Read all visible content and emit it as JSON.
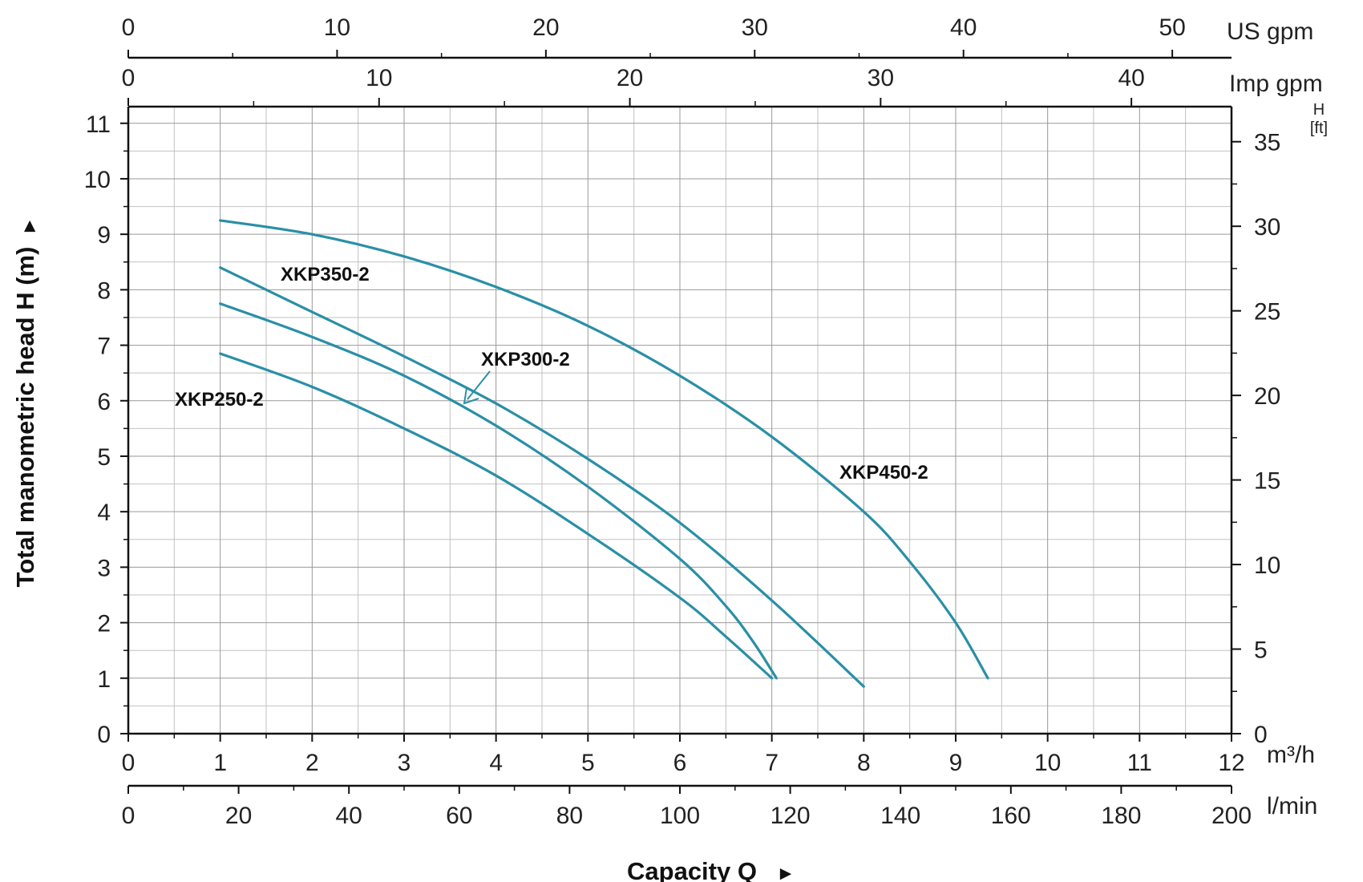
{
  "chart_data": {
    "type": "line",
    "title": "",
    "xlabel": "Capacity Q",
    "ylabel": "Total manometric head H (m)",
    "x_arrow": "►",
    "y_arrow": "►",
    "grid": true,
    "xlim": [
      0,
      12
    ],
    "ylim": [
      0,
      11.3
    ],
    "x_ticks": [
      "0",
      "1",
      "2",
      "3",
      "4",
      "5",
      "6",
      "7",
      "8",
      "9",
      "10",
      "11",
      "12"
    ],
    "x_unit": "m³/h",
    "y_ticks": [
      "0",
      "1",
      "2",
      "3",
      "4",
      "5",
      "6",
      "7",
      "8",
      "9",
      "10",
      "11"
    ],
    "secondary_axes": {
      "lmin": {
        "unit": "l/min",
        "max": 200,
        "ticks": [
          "0",
          "20",
          "40",
          "60",
          "80",
          "100",
          "120",
          "140",
          "160",
          "180",
          "200"
        ]
      },
      "imp_gpm": {
        "unit": "Imp gpm",
        "factor": 3.666,
        "ticks": [
          "0",
          "10",
          "20",
          "30",
          "40"
        ]
      },
      "us_gpm": {
        "unit": "US gpm",
        "factor": 4.403,
        "ticks": [
          "0",
          "10",
          "20",
          "30",
          "40",
          "50"
        ]
      },
      "ft": {
        "unit_top": "H",
        "unit_bottom": "[ft]",
        "factor": 3.2808,
        "ticks": [
          "0",
          "5",
          "10",
          "15",
          "20",
          "25",
          "30",
          "35"
        ]
      }
    },
    "series": [
      {
        "name": "XKP250-2",
        "label": "XKP250-2",
        "color": "#2a8fa6",
        "x": [
          1.0,
          2.0,
          3.0,
          4.0,
          5.0,
          6.0,
          6.5,
          7.0
        ],
        "y": [
          6.85,
          6.25,
          5.5,
          4.65,
          3.6,
          2.45,
          1.75,
          1.0
        ]
      },
      {
        "name": "XKP300-2",
        "label": "XKP300-2",
        "color": "#2a8fa6",
        "x": [
          1.0,
          2.0,
          3.0,
          4.0,
          5.0,
          6.0,
          6.5,
          6.8,
          7.05
        ],
        "y": [
          7.75,
          7.15,
          6.45,
          5.55,
          4.45,
          3.15,
          2.3,
          1.65,
          1.0
        ]
      },
      {
        "name": "XKP350-2",
        "label": "XKP350-2",
        "color": "#2a8fa6",
        "x": [
          1.0,
          2.0,
          3.0,
          4.0,
          5.0,
          6.0,
          7.0,
          8.0
        ],
        "y": [
          8.4,
          7.6,
          6.8,
          5.95,
          4.95,
          3.8,
          2.4,
          0.85
        ]
      },
      {
        "name": "XKP450-2",
        "label": "XKP450-2",
        "color": "#2a8fa6",
        "x": [
          1.0,
          2.0,
          3.0,
          4.0,
          5.0,
          6.0,
          7.0,
          8.0,
          8.5,
          9.0,
          9.35
        ],
        "y": [
          9.25,
          9.0,
          8.6,
          8.05,
          7.35,
          6.45,
          5.35,
          4.0,
          3.1,
          2.0,
          1.0
        ]
      }
    ]
  }
}
